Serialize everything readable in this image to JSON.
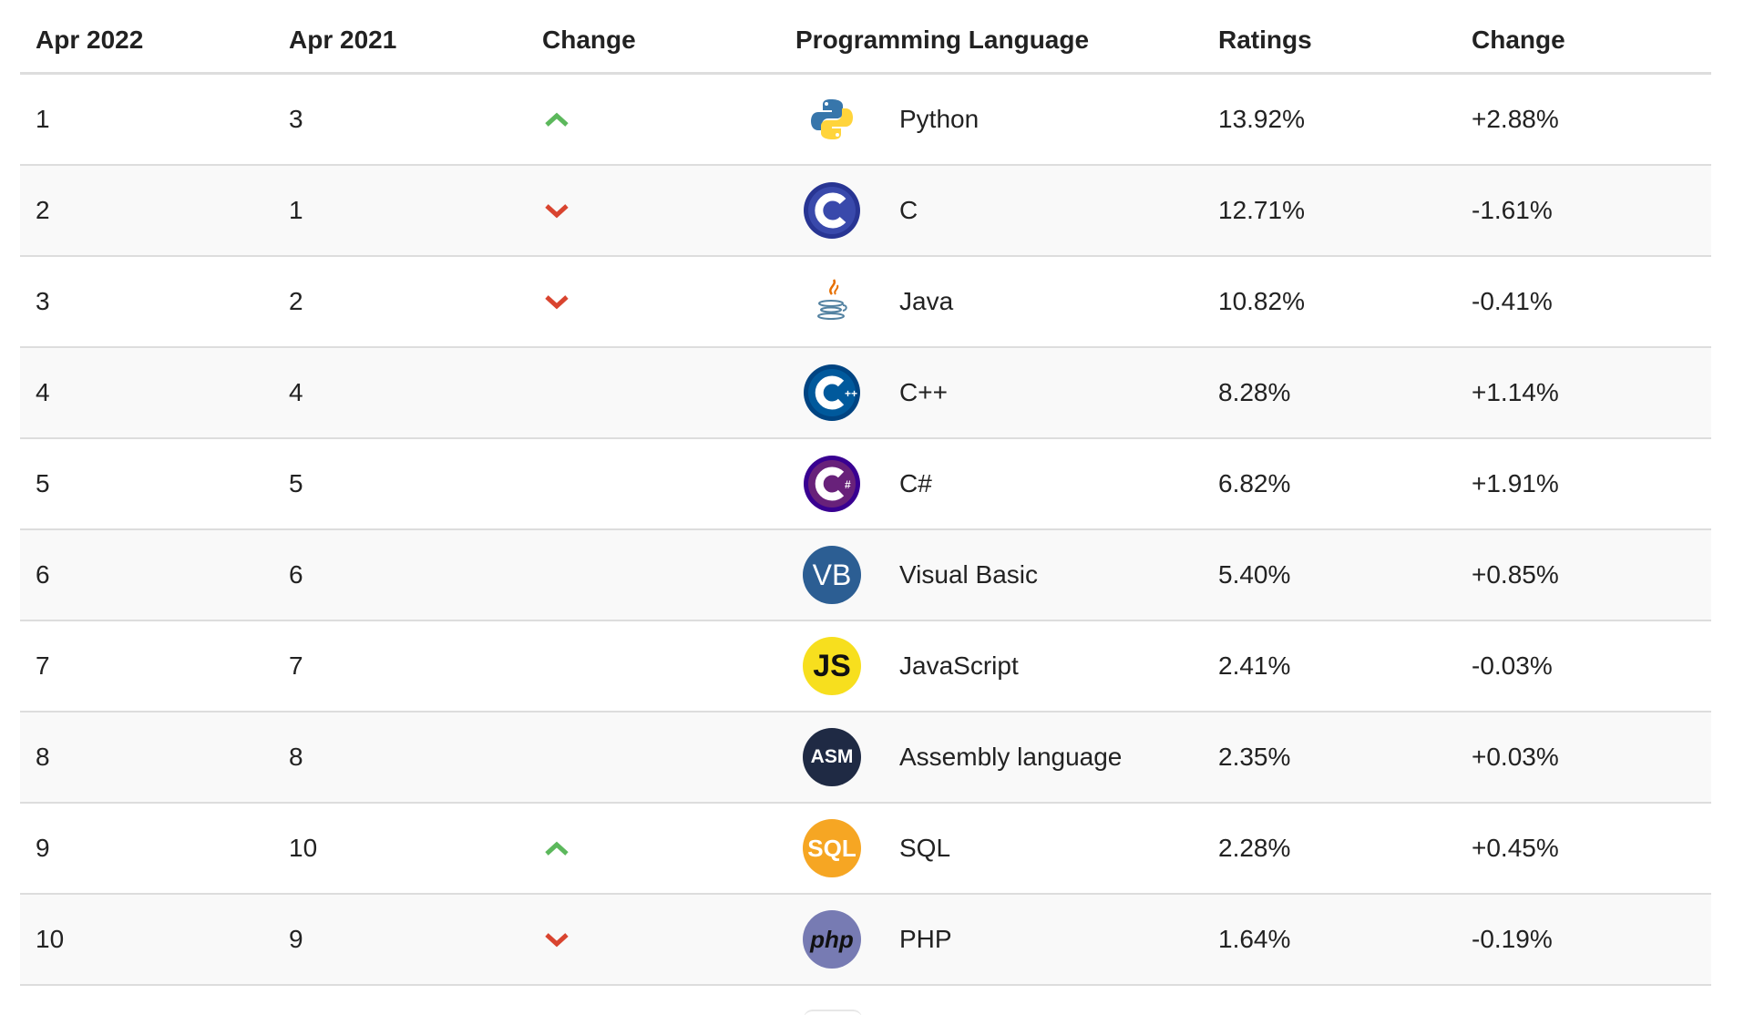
{
  "columns": [
    "Apr 2022",
    "Apr 2021",
    "Change",
    "Programming Language",
    "Ratings",
    "Change"
  ],
  "colors": {
    "up": "#5cb85c",
    "down": "#d9442f",
    "row_alt": "#f9f9f9",
    "border": "#dddddd"
  },
  "rows": [
    {
      "rank_2022": "1",
      "rank_2021": "3",
      "trend": "up",
      "logo": "python-icon",
      "language": "Python",
      "rating": "13.92%",
      "change": "+2.88%"
    },
    {
      "rank_2022": "2",
      "rank_2021": "1",
      "trend": "down",
      "logo": "c-icon",
      "language": "C",
      "rating": "12.71%",
      "change": "-1.61%"
    },
    {
      "rank_2022": "3",
      "rank_2021": "2",
      "trend": "down",
      "logo": "java-icon",
      "language": "Java",
      "rating": "10.82%",
      "change": "-0.41%"
    },
    {
      "rank_2022": "4",
      "rank_2021": "4",
      "trend": "none",
      "logo": "cpp-icon",
      "language": "C++",
      "rating": "8.28%",
      "change": "+1.14%"
    },
    {
      "rank_2022": "5",
      "rank_2021": "5",
      "trend": "none",
      "logo": "csharp-icon",
      "language": "C#",
      "rating": "6.82%",
      "change": "+1.91%"
    },
    {
      "rank_2022": "6",
      "rank_2021": "6",
      "trend": "none",
      "logo": "visual-basic-icon",
      "logo_text": "VB",
      "language": "Visual Basic",
      "rating": "5.40%",
      "change": "+0.85%"
    },
    {
      "rank_2022": "7",
      "rank_2021": "7",
      "trend": "none",
      "logo": "javascript-icon",
      "logo_text": "JS",
      "language": "JavaScript",
      "rating": "2.41%",
      "change": "-0.03%"
    },
    {
      "rank_2022": "8",
      "rank_2021": "8",
      "trend": "none",
      "logo": "assembly-icon",
      "logo_text": "ASM",
      "language": "Assembly language",
      "rating": "2.35%",
      "change": "+0.03%"
    },
    {
      "rank_2022": "9",
      "rank_2021": "10",
      "trend": "up",
      "logo": "sql-icon",
      "logo_text": "SQL",
      "language": "SQL",
      "rating": "2.28%",
      "change": "+0.45%"
    },
    {
      "rank_2022": "10",
      "rank_2021": "9",
      "trend": "down",
      "logo": "php-icon",
      "logo_text": "php",
      "language": "PHP",
      "rating": "1.64%",
      "change": "-0.19%"
    }
  ]
}
